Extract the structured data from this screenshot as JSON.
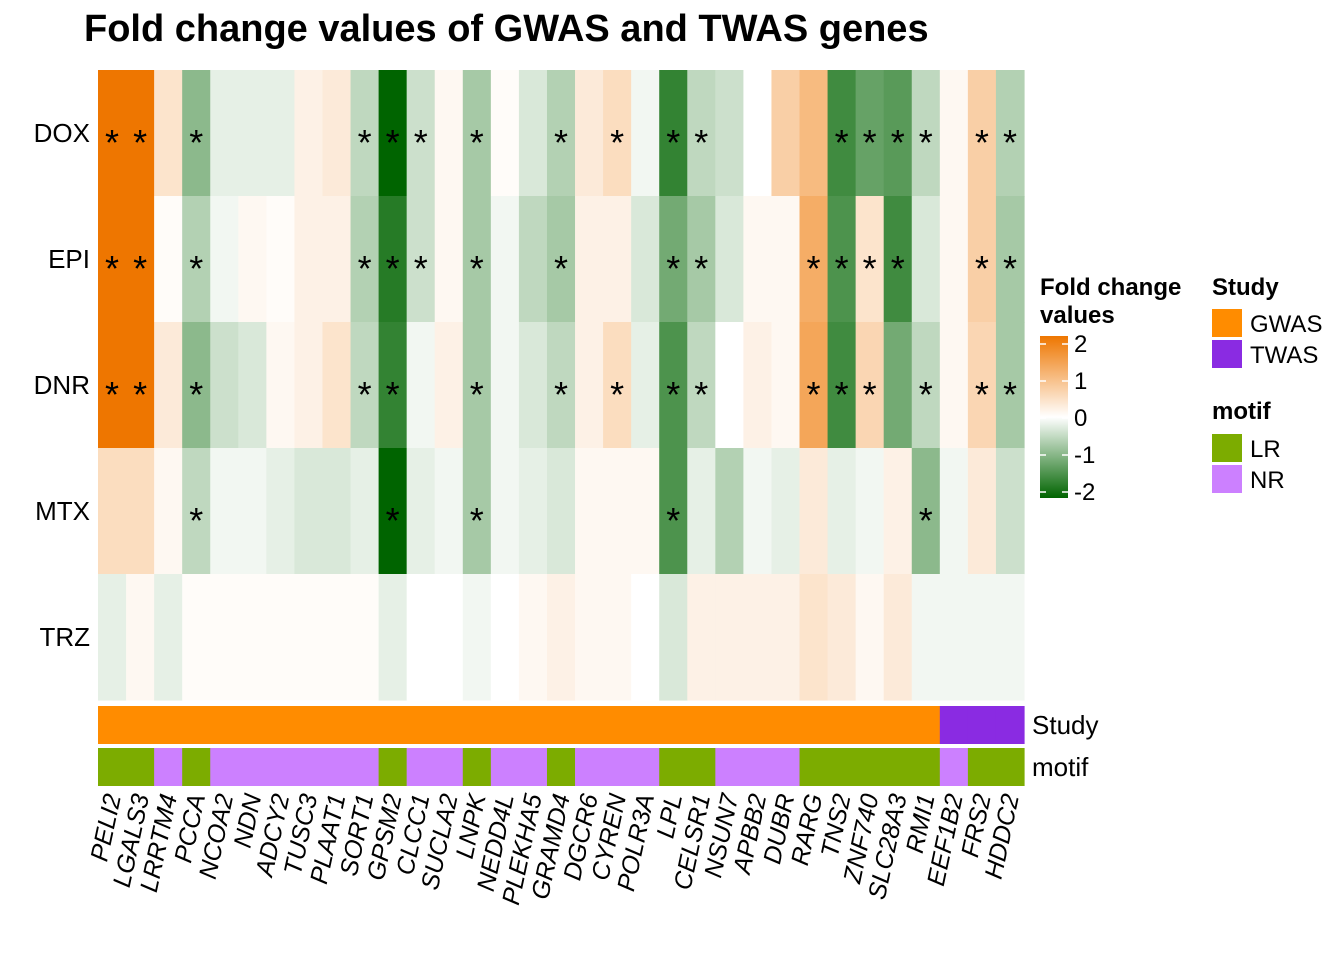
{
  "chart_data": {
    "type": "heatmap",
    "title": "Fold change values of GWAS and TWAS genes",
    "rows": [
      "DOX",
      "EPI",
      "DNR",
      "MTX",
      "TRZ"
    ],
    "columns": [
      "PELI2",
      "LGALS3",
      "LRRTM4",
      "PCCA",
      "NCOA2",
      "NDN",
      "ADCY2",
      "TUSC3",
      "PLAAT1",
      "SORT1",
      "GPSM2",
      "CLCC1",
      "SUCLA2",
      "LNPK",
      "NEDD4L",
      "PLEKHA5",
      "GRAMD4",
      "DGCR6",
      "CYREN",
      "POLR3A",
      "LPL",
      "CELSR1",
      "NSUN7",
      "APBB2",
      "DUBR",
      "RARG",
      "TNS2",
      "ZNF740",
      "SLC28A3",
      "RMI1",
      "EEF1B2",
      "FRS2",
      "HDDC2"
    ],
    "values": [
      [
        2.2,
        2.2,
        0.4,
        -0.9,
        -0.2,
        -0.2,
        -0.2,
        0.2,
        0.3,
        -0.5,
        -2.5,
        -0.4,
        0.1,
        -0.7,
        0.05,
        -0.3,
        -0.6,
        0.3,
        0.5,
        -0.1,
        -1.6,
        -0.5,
        -0.4,
        0.0,
        0.7,
        1.0,
        -1.5,
        -1.2,
        -1.3,
        -0.5,
        0.1,
        0.7,
        -0.6
      ],
      [
        2.2,
        2.2,
        0.05,
        -0.6,
        -0.1,
        0.1,
        0.05,
        0.2,
        0.2,
        -0.6,
        -1.7,
        -0.4,
        0.1,
        -0.7,
        -0.1,
        -0.5,
        -0.7,
        0.2,
        0.2,
        -0.3,
        -1.1,
        -0.7,
        -0.3,
        0.1,
        0.1,
        1.2,
        -1.4,
        0.4,
        -1.5,
        -0.3,
        0.1,
        0.7,
        -0.7
      ],
      [
        2.2,
        2.2,
        0.3,
        -0.9,
        -0.4,
        -0.3,
        0.1,
        0.2,
        0.4,
        -0.5,
        -1.6,
        -0.1,
        0.2,
        -0.7,
        -0.1,
        -0.3,
        -0.5,
        0.2,
        0.5,
        -0.2,
        -1.4,
        -0.5,
        0.0,
        0.2,
        0.1,
        1.3,
        -1.5,
        0.6,
        -1.1,
        -0.5,
        0.1,
        0.6,
        -0.7
      ],
      [
        0.5,
        0.5,
        0.1,
        -0.5,
        -0.1,
        -0.1,
        -0.2,
        -0.3,
        -0.3,
        -0.2,
        -2.3,
        -0.2,
        -0.1,
        -0.7,
        -0.1,
        -0.2,
        -0.3,
        0.1,
        0.1,
        0.1,
        -1.4,
        -0.2,
        -0.6,
        -0.1,
        -0.2,
        0.3,
        -0.2,
        -0.1,
        0.2,
        -0.9,
        -0.1,
        0.3,
        -0.4
      ],
      [
        -0.2,
        0.1,
        -0.2,
        0.05,
        0.05,
        0.05,
        0.05,
        0.05,
        0.05,
        0.05,
        -0.2,
        0.0,
        0.0,
        -0.1,
        0.0,
        0.1,
        0.2,
        0.1,
        0.1,
        0.0,
        -0.3,
        0.2,
        0.2,
        0.2,
        0.2,
        0.4,
        0.3,
        0.1,
        0.3,
        -0.1,
        -0.1,
        -0.1,
        -0.1
      ]
    ],
    "significant": [
      [
        1,
        1,
        0,
        1,
        0,
        0,
        0,
        0,
        0,
        1,
        1,
        1,
        0,
        1,
        0,
        0,
        1,
        0,
        1,
        0,
        1,
        1,
        0,
        0,
        0,
        0,
        1,
        1,
        1,
        1,
        0,
        1,
        1
      ],
      [
        1,
        1,
        0,
        1,
        0,
        0,
        0,
        0,
        0,
        1,
        1,
        1,
        0,
        1,
        0,
        0,
        1,
        0,
        0,
        0,
        1,
        1,
        0,
        0,
        0,
        1,
        1,
        1,
        1,
        0,
        0,
        1,
        1
      ],
      [
        1,
        1,
        0,
        1,
        0,
        0,
        0,
        0,
        0,
        1,
        1,
        0,
        0,
        1,
        0,
        0,
        1,
        0,
        1,
        0,
        1,
        1,
        0,
        0,
        0,
        1,
        1,
        1,
        0,
        1,
        0,
        1,
        1
      ],
      [
        0,
        0,
        0,
        1,
        0,
        0,
        0,
        0,
        0,
        0,
        1,
        0,
        0,
        1,
        0,
        0,
        0,
        0,
        0,
        0,
        1,
        0,
        0,
        0,
        0,
        0,
        0,
        0,
        0,
        1,
        0,
        0,
        0
      ],
      [
        0,
        0,
        0,
        0,
        0,
        0,
        0,
        0,
        0,
        0,
        0,
        0,
        0,
        0,
        0,
        0,
        0,
        0,
        0,
        0,
        0,
        0,
        0,
        0,
        0,
        0,
        0,
        0,
        0,
        0,
        0,
        0,
        0
      ]
    ],
    "significance_mark": "*",
    "study": [
      "GWAS",
      "GWAS",
      "GWAS",
      "GWAS",
      "GWAS",
      "GWAS",
      "GWAS",
      "GWAS",
      "GWAS",
      "GWAS",
      "GWAS",
      "GWAS",
      "GWAS",
      "GWAS",
      "GWAS",
      "GWAS",
      "GWAS",
      "GWAS",
      "GWAS",
      "GWAS",
      "GWAS",
      "GWAS",
      "GWAS",
      "GWAS",
      "GWAS",
      "GWAS",
      "GWAS",
      "GWAS",
      "GWAS",
      "GWAS",
      "TWAS",
      "TWAS",
      "TWAS"
    ],
    "motif": [
      "LR",
      "LR",
      "NR",
      "LR",
      "NR",
      "NR",
      "NR",
      "NR",
      "NR",
      "NR",
      "LR",
      "NR",
      "NR",
      "LR",
      "NR",
      "NR",
      "LR",
      "NR",
      "NR",
      "NR",
      "LR",
      "LR",
      "NR",
      "NR",
      "NR",
      "LR",
      "LR",
      "LR",
      "LR",
      "LR",
      "NR",
      "LR",
      "LR"
    ],
    "annotation_labels": [
      "Study",
      "motif"
    ],
    "color_scale": {
      "min": -2,
      "max": 2,
      "low_color": "#006400",
      "mid_color": "#ffffff",
      "high_color": "#ee7600",
      "ticks": [
        2,
        1,
        0,
        -1,
        -2
      ]
    },
    "legend": {
      "fold_change_title": [
        "Fold change",
        "values"
      ],
      "study_title": "Study",
      "study_items": [
        {
          "label": "GWAS",
          "color": "#ff8c00"
        },
        {
          "label": "TWAS",
          "color": "#8a2be2"
        }
      ],
      "motif_title": "motif",
      "motif_items": [
        {
          "label": "LR",
          "color": "#7cac00"
        },
        {
          "label": "NR",
          "color": "#cc80ff"
        }
      ],
      "placement": "right"
    }
  }
}
